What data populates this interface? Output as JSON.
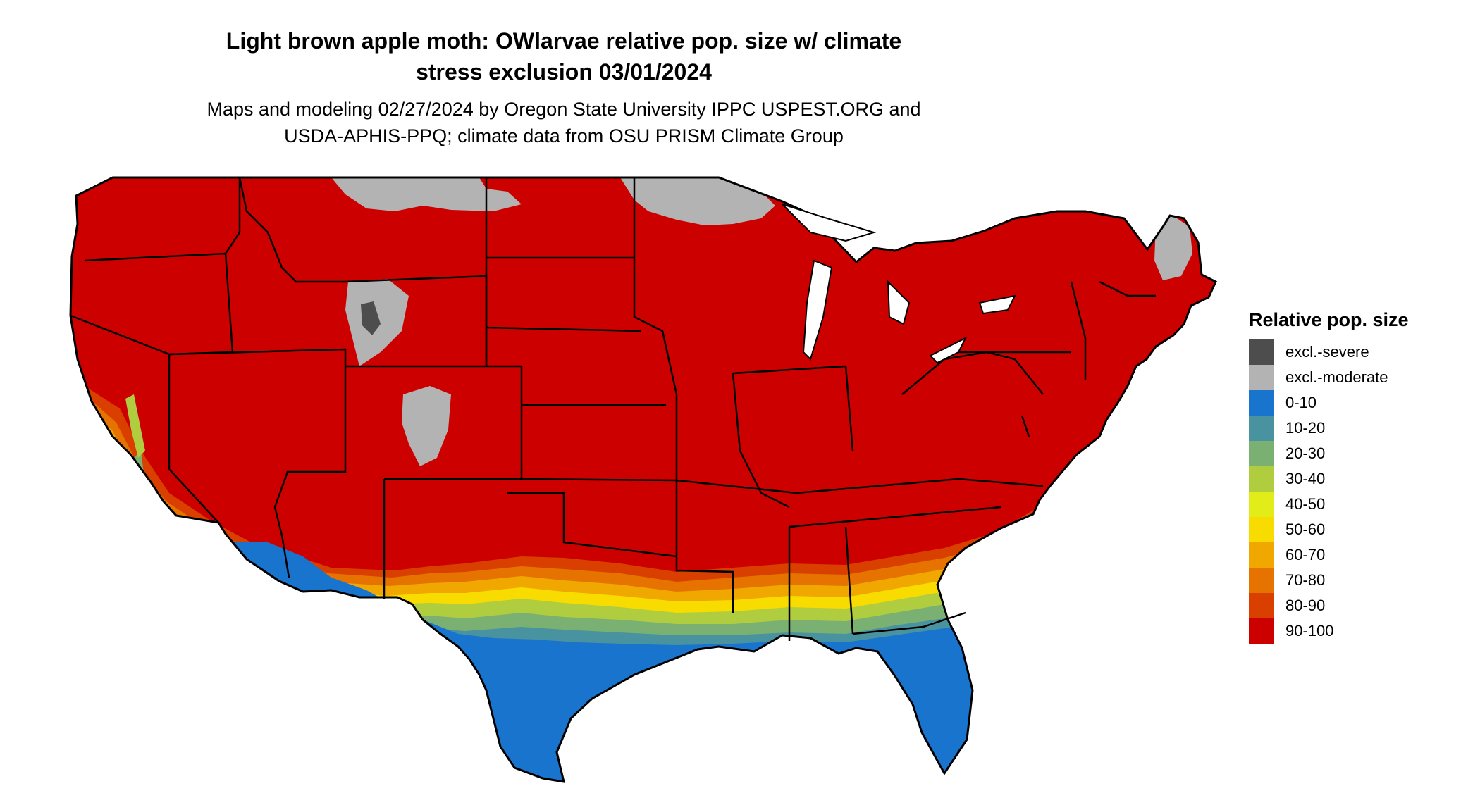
{
  "title": {
    "line1": "Light brown apple moth: OWlarvae relative pop. size w/ climate",
    "line2": "stress exclusion 03/01/2024"
  },
  "subtitle": {
    "line1": "Maps and modeling 02/27/2024 by Oregon State University IPPC USPEST.ORG and",
    "line2": "USDA-APHIS-PPQ; climate data from OSU PRISM Climate Group"
  },
  "legend": {
    "title": "Relative pop. size",
    "items": [
      {
        "label": "excl.-severe",
        "color": "#4d4d4d"
      },
      {
        "label": "excl.-moderate",
        "color": "#b3b3b3"
      },
      {
        "label": "0-10",
        "color": "#1874cd"
      },
      {
        "label": "10-20",
        "color": "#48939f"
      },
      {
        "label": "20-30",
        "color": "#7ab173"
      },
      {
        "label": "30-40",
        "color": "#b0cd40"
      },
      {
        "label": "40-50",
        "color": "#e2ec18"
      },
      {
        "label": "50-60",
        "color": "#f8dc00"
      },
      {
        "label": "60-70",
        "color": "#f0a800"
      },
      {
        "label": "70-80",
        "color": "#e67300"
      },
      {
        "label": "80-90",
        "color": "#d94000"
      },
      {
        "label": "90-100",
        "color": "#cd0000"
      }
    ]
  }
}
